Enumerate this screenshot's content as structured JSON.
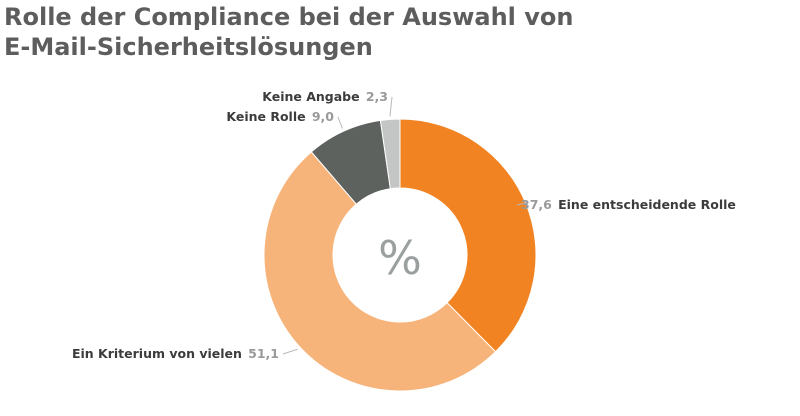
{
  "chart_data": {
    "type": "pie",
    "title": "Rolle der Compliance bei der Auswahl von E-Mail-Sicherheitslösungen",
    "title_lines": [
      "Rolle der Compliance bei der Auswahl von",
      "E-Mail-Sicherheitslösungen"
    ],
    "center_label": "%",
    "legend": "none",
    "slices": [
      {
        "label": "Eine entscheidende Rolle",
        "value": 37.6,
        "value_text": "37,6",
        "color": "#f28322"
      },
      {
        "label": "Ein Kriterium von vielen",
        "value": 51.1,
        "value_text": "51,1",
        "color": "#f7b47a"
      },
      {
        "label": "Keine Rolle",
        "value": 9.0,
        "value_text": "9,0",
        "color": "#5e625f"
      },
      {
        "label": "Keine Angabe",
        "value": 2.3,
        "value_text": "2,3",
        "color": "#c4c6c5"
      }
    ]
  }
}
